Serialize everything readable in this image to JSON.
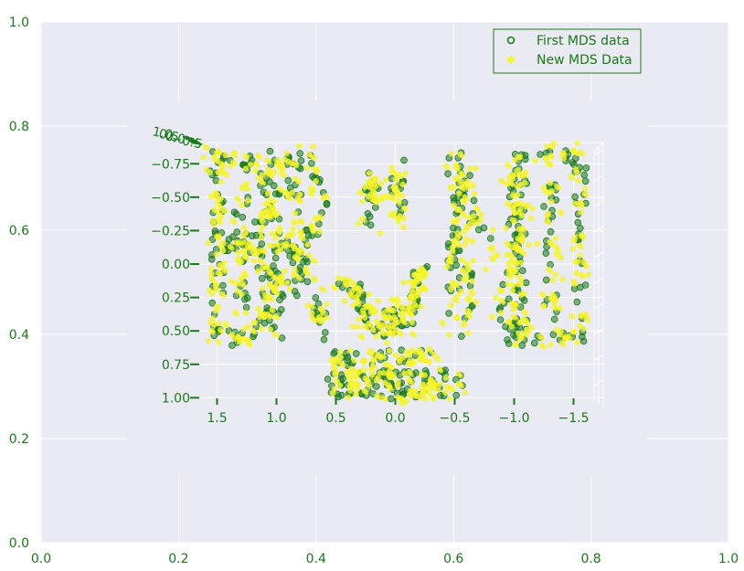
{
  "chart_data": {
    "type": "scatter",
    "projection": "3d",
    "background_color": "#eaeaf2",
    "grid": true,
    "outer_axes": {
      "x_ticks": [
        "0.0",
        "0.2",
        "0.4",
        "0.6",
        "0.8",
        "1.0"
      ],
      "y_ticks": [
        "0.0",
        "0.2",
        "0.4",
        "0.6",
        "0.8",
        "1.0"
      ],
      "xlim": [
        0,
        1
      ],
      "ylim": [
        0,
        1
      ]
    },
    "inner_axes": {
      "x_ticks": [
        "1.5",
        "1.0",
        "0.5",
        "0.0",
        "−0.5",
        "−1.0",
        "−1.5"
      ],
      "y_ticks": [
        "−0.75",
        "−0.50",
        "−0.25",
        "0.00",
        "0.25",
        "0.50",
        "0.75",
        "1.00"
      ],
      "z_ticks": [
        "1.0",
        "0.5",
        "0.0",
        "−0.5"
      ],
      "xlim": [
        1.75,
        -1.75
      ],
      "ylim": [
        -0.95,
        1.1
      ]
    },
    "series": [
      {
        "name": "First MDS data",
        "color": "#1a7a1a",
        "marker": "o"
      },
      {
        "name": "New MDS Data",
        "color": "#f5f52a",
        "marker": "*"
      }
    ],
    "shape": "BRUNO letters",
    "legend_position": "upper right"
  }
}
